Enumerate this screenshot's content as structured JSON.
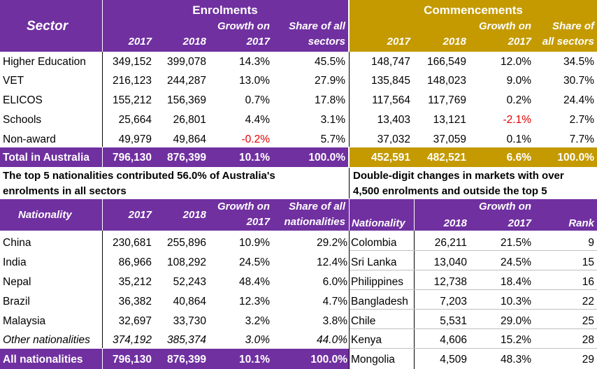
{
  "top": {
    "sector_label": "Sector",
    "enrolments_title": "Enrolments",
    "commencements_title": "Commencements",
    "enrol_cols": [
      "2017",
      "2018",
      "Growth on",
      "2017",
      "Share of all",
      "sectors"
    ],
    "comm_cols": [
      "2017",
      "2018",
      "Growth on",
      "2017",
      "Share of",
      "all sectors"
    ],
    "rows": [
      {
        "sector": "Higher Education",
        "e2017": "349,152",
        "e2018": "399,078",
        "eg": "14.3%",
        "es": "45.5%",
        "c2017": "148,747",
        "c2018": "166,549",
        "cg": "12.0%",
        "cs": "34.5%"
      },
      {
        "sector": "VET",
        "e2017": "216,123",
        "e2018": "244,287",
        "eg": "13.0%",
        "es": "27.9%",
        "c2017": "135,845",
        "c2018": "148,023",
        "cg": "9.0%",
        "cs": "30.7%"
      },
      {
        "sector": "ELICOS",
        "e2017": "155,212",
        "e2018": "156,369",
        "eg": "0.7%",
        "es": "17.8%",
        "c2017": "117,564",
        "c2018": "117,769",
        "cg": "0.2%",
        "cs": "24.4%"
      },
      {
        "sector": "Schools",
        "e2017": "25,664",
        "e2018": "26,801",
        "eg": "4.4%",
        "es": "3.1%",
        "c2017": "13,403",
        "c2018": "13,121",
        "cg": "-2.1%",
        "cs": "2.7%"
      },
      {
        "sector": "Non-award",
        "e2017": "49,979",
        "e2018": "49,864",
        "eg": "-0.2%",
        "es": "5.7%",
        "c2017": "37,032",
        "c2018": "37,059",
        "cg": "0.1%",
        "cs": "7.7%"
      }
    ],
    "total": {
      "sector": "Total in Australia",
      "e2017": "796,130",
      "e2018": "876,399",
      "eg": "10.1%",
      "es": "100.0%",
      "c2017": "452,591",
      "c2018": "482,521",
      "cg": "6.6%",
      "cs": "100.0%"
    }
  },
  "left_caption": {
    "line1": "The top 5 nationalities contributed 56.0% of Australia's",
    "line2": "enrolments in all sectors"
  },
  "right_caption": {
    "line1": "Double-digit changes in markets with over",
    "line2": "4,500 enrolments and outside the top 5"
  },
  "nat_table": {
    "header": {
      "nationality": "Nationality",
      "y2017": "2017",
      "y2018": "2018",
      "growth1": "Growth on",
      "growth2": "2017",
      "share1": "Share of all",
      "share2": "nationalities"
    },
    "rows": [
      {
        "name": "China",
        "v2017": "230,681",
        "v2018": "255,896",
        "growth": "10.9%",
        "share": "29.2%"
      },
      {
        "name": "India",
        "v2017": "86,966",
        "v2018": "108,292",
        "growth": "24.5%",
        "share": "12.4%"
      },
      {
        "name": "Nepal",
        "v2017": "35,212",
        "v2018": "52,243",
        "growth": "48.4%",
        "share": "6.0%"
      },
      {
        "name": "Brazil",
        "v2017": "36,382",
        "v2018": "40,864",
        "growth": "12.3%",
        "share": "4.7%"
      },
      {
        "name": "Malaysia",
        "v2017": "32,697",
        "v2018": "33,730",
        "growth": "3.2%",
        "share": "3.8%"
      },
      {
        "name": "Other nationalities",
        "v2017": "374,192",
        "v2018": "385,374",
        "growth": "3.0%",
        "share": "44.0%"
      }
    ],
    "total": {
      "name": "All nationalities",
      "v2017": "796,130",
      "v2018": "876,399",
      "growth": "10.1%",
      "share": "100.0%"
    }
  },
  "market_table": {
    "header": {
      "nationality": "Nationality",
      "y2018": "2018",
      "growth1": "Growth on",
      "growth2": "2017",
      "rank": "Rank"
    },
    "rows": [
      {
        "name": "Colombia",
        "v2018": "26,211",
        "growth": "21.5%",
        "rank": "9"
      },
      {
        "name": "Sri Lanka",
        "v2018": "13,040",
        "growth": "24.5%",
        "rank": "15"
      },
      {
        "name": "Philippines",
        "v2018": "12,738",
        "growth": "18.4%",
        "rank": "16"
      },
      {
        "name": "Bangladesh",
        "v2018": "7,203",
        "growth": "10.3%",
        "rank": "22"
      },
      {
        "name": "Chile",
        "v2018": "5,531",
        "growth": "29.0%",
        "rank": "25"
      },
      {
        "name": "Kenya",
        "v2018": "4,606",
        "growth": "15.2%",
        "rank": "28"
      },
      {
        "name": "Mongolia",
        "v2018": "4,509",
        "growth": "48.3%",
        "rank": "29"
      }
    ]
  }
}
